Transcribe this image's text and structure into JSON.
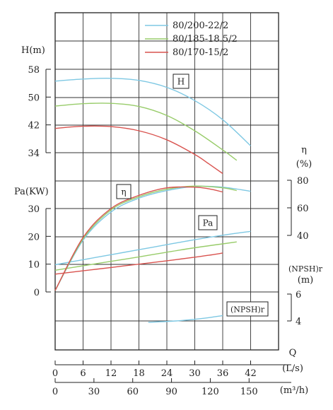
{
  "chart_data": {
    "type": "line",
    "x_flow_ls": {
      "label": "(L/s)",
      "symbol": "Q",
      "ticks": [
        0,
        6,
        12,
        18,
        24,
        30,
        36,
        42
      ]
    },
    "x_flow_m3h": {
      "label": "(m³/h)",
      "ticks": [
        0,
        30,
        60,
        90,
        120,
        150
      ]
    },
    "head_axis": {
      "label": "H(m)",
      "range": [
        34,
        58
      ],
      "ticks": [
        34,
        42,
        50,
        58
      ]
    },
    "eta_axis": {
      "label_top": "η",
      "label_bottom": "(%)",
      "range": [
        40,
        80
      ],
      "ticks": [
        40,
        60,
        80
      ]
    },
    "power_axis": {
      "label": "Pa(KW)",
      "range": [
        0,
        30
      ],
      "ticks": [
        0,
        10,
        20,
        30
      ]
    },
    "npsh_axis": {
      "label_top": "(NPSH)r",
      "label_bottom": "(m)",
      "range": [
        4,
        6
      ],
      "ticks": [
        4,
        6
      ]
    },
    "curve_labels": {
      "head": "H",
      "efficiency": "η",
      "power": "Pa",
      "npsh": "(NPSH)r"
    },
    "series": [
      {
        "name": "80/200-22/2",
        "color": "#7ec8e3",
        "head": {
          "x": [
            0,
            6,
            12,
            18,
            24,
            30,
            36,
            42
          ],
          "y": [
            54.6,
            55.2,
            55.4,
            54.8,
            52.8,
            49.0,
            43.5,
            36.0
          ]
        },
        "efficiency": {
          "x": [
            0,
            6,
            12,
            18,
            24,
            30,
            36,
            42
          ],
          "y": [
            0,
            36.5,
            57.0,
            67.0,
            72.5,
            75.5,
            75.0,
            72.0
          ]
        },
        "power": {
          "x": [
            0,
            6,
            12,
            18,
            24,
            30,
            36,
            42
          ],
          "y": [
            9.8,
            11.6,
            13.4,
            15.2,
            17.0,
            18.8,
            20.4,
            21.8
          ]
        },
        "npsh": {
          "x": [
            20,
            26,
            32,
            36
          ],
          "y": [
            3.9,
            4.0,
            4.2,
            4.4
          ]
        }
      },
      {
        "name": "80/185-18.5/2",
        "color": "#98cc6a",
        "head": {
          "x": [
            0,
            6,
            12,
            18,
            24,
            30,
            36,
            39
          ],
          "y": [
            47.4,
            48.1,
            48.2,
            47.3,
            44.7,
            40.3,
            34.8,
            31.8
          ]
        },
        "efficiency": {
          "x": [
            0,
            6,
            12,
            18,
            24,
            30,
            36,
            39
          ],
          "y": [
            0,
            37.5,
            58.5,
            68.0,
            73.5,
            75.8,
            74.5,
            72.5
          ]
        },
        "power": {
          "x": [
            0,
            6,
            12,
            18,
            24,
            30,
            36,
            39
          ],
          "y": [
            7.8,
            9.4,
            11.0,
            12.6,
            14.3,
            15.9,
            17.3,
            18.0
          ]
        }
      },
      {
        "name": "80/170-15/2",
        "color": "#d9534f",
        "head": {
          "x": [
            0,
            6,
            12,
            18,
            24,
            30,
            33,
            36
          ],
          "y": [
            41.0,
            41.6,
            41.5,
            40.3,
            37.7,
            33.5,
            30.8,
            28.0
          ]
        },
        "efficiency": {
          "x": [
            0,
            6,
            12,
            18,
            24,
            30,
            33,
            36
          ],
          "y": [
            0,
            38.5,
            59.5,
            69.0,
            74.5,
            75.0,
            73.8,
            71.5
          ]
        },
        "power": {
          "x": [
            0,
            6,
            12,
            18,
            24,
            30,
            33,
            36
          ],
          "y": [
            6.4,
            7.6,
            8.8,
            10.0,
            11.2,
            12.5,
            13.2,
            14.0
          ]
        }
      }
    ],
    "grid": true,
    "legend_position": "top-right"
  }
}
